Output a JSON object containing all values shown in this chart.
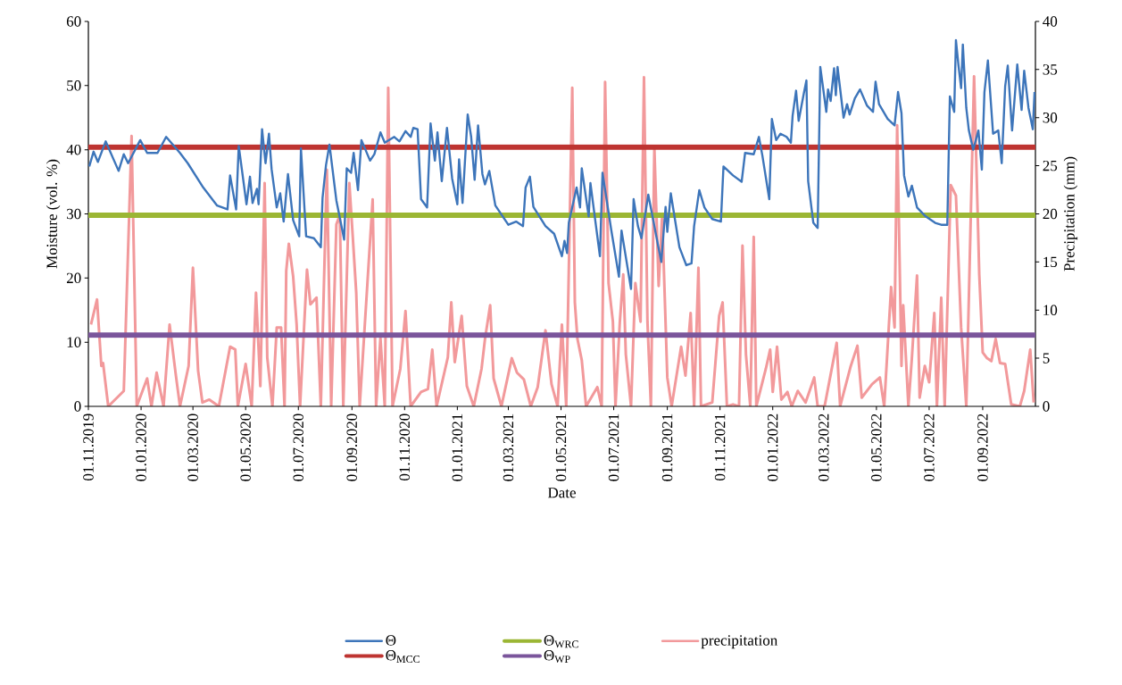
{
  "chart_data": {
    "type": "line",
    "xlabel": "Date",
    "ylabel": "Moisture (vol. %)",
    "y2label": "Precipitation (mm)",
    "xlim": [
      "2019-11-01",
      "2022-11-01"
    ],
    "xticks": [
      {
        "value": "2019-11-01",
        "label": "01.11.2019"
      },
      {
        "value": "2020-01-01",
        "label": "01.01.2020"
      },
      {
        "value": "2020-03-01",
        "label": "01.03.2020"
      },
      {
        "value": "2020-05-01",
        "label": "01.05.2020"
      },
      {
        "value": "2020-07-01",
        "label": "01.07.2020"
      },
      {
        "value": "2020-09-01",
        "label": "01.09.2020"
      },
      {
        "value": "2020-11-01",
        "label": "01.11.2020"
      },
      {
        "value": "2021-01-01",
        "label": "01.01.2021"
      },
      {
        "value": "2021-03-01",
        "label": "01.03.2021"
      },
      {
        "value": "2021-05-01",
        "label": "01.05.2021"
      },
      {
        "value": "2021-07-01",
        "label": "01.07.2021"
      },
      {
        "value": "2021-09-01",
        "label": "01.09.2021"
      },
      {
        "value": "2021-11-01",
        "label": "01.11.2021"
      },
      {
        "value": "2022-01-01",
        "label": "01.01.2022"
      },
      {
        "value": "2022-03-01",
        "label": "01.03.2022"
      },
      {
        "value": "2022-05-01",
        "label": "01.05.2022"
      },
      {
        "value": "2022-07-01",
        "label": "01.07.2022"
      },
      {
        "value": "2022-09-01",
        "label": "01.09.2022"
      }
    ],
    "ylim": [
      0,
      60
    ],
    "yticks": [
      0,
      10,
      20,
      30,
      40,
      50,
      60
    ],
    "y2lim": [
      0,
      40
    ],
    "y2ticks": [
      0,
      5,
      10,
      15,
      20,
      25,
      30,
      35,
      40
    ],
    "legend": "bottom",
    "marker": "none",
    "line_style": "solid",
    "series": [
      {
        "name": "Θ",
        "color": "#3d75ba",
        "x": [
          "2019-11-02",
          "2019-11-07",
          "2019-11-12",
          "2019-11-21",
          "2019-12-06",
          "2019-12-12",
          "2019-12-17",
          "2019-12-31",
          "2020-01-08",
          "2020-01-20",
          "2020-01-30",
          "2020-02-15",
          "2020-02-24",
          "2020-03-13",
          "2020-03-29",
          "2020-04-10",
          "2020-04-13",
          "2020-04-20",
          "2020-04-23",
          "2020-05-02",
          "2020-05-06",
          "2020-05-09",
          "2020-05-14",
          "2020-05-16",
          "2020-05-20",
          "2020-05-24",
          "2020-05-28",
          "2020-05-31",
          "2020-06-06",
          "2020-06-10",
          "2020-06-14",
          "2020-06-19",
          "2020-06-25",
          "2020-07-02",
          "2020-07-04",
          "2020-07-10",
          "2020-07-19",
          "2020-07-27",
          "2020-07-29",
          "2020-08-02",
          "2020-08-06",
          "2020-08-14",
          "2020-08-23",
          "2020-08-26",
          "2020-08-31",
          "2020-09-03",
          "2020-09-08",
          "2020-09-12",
          "2020-09-22",
          "2020-09-27",
          "2020-10-04",
          "2020-10-09",
          "2020-10-20",
          "2020-10-26",
          "2020-11-02",
          "2020-11-08",
          "2020-11-11",
          "2020-11-16",
          "2020-11-20",
          "2020-11-27",
          "2020-12-01",
          "2020-12-06",
          "2020-12-09",
          "2020-12-14",
          "2020-12-20",
          "2020-12-26",
          "2021-01-01",
          "2021-01-03",
          "2021-01-07",
          "2021-01-13",
          "2021-01-17",
          "2021-01-21",
          "2021-01-25",
          "2021-01-30",
          "2021-02-02",
          "2021-02-07",
          "2021-02-14",
          "2021-03-01",
          "2021-03-10",
          "2021-03-18",
          "2021-03-21",
          "2021-03-26",
          "2021-03-30",
          "2021-04-13",
          "2021-04-23",
          "2021-05-02",
          "2021-05-05",
          "2021-05-08",
          "2021-05-10",
          "2021-05-19",
          "2021-05-23",
          "2021-05-25",
          "2021-06-02",
          "2021-06-04",
          "2021-06-15",
          "2021-06-18",
          "2021-06-28",
          "2021-07-07",
          "2021-07-10",
          "2021-07-21",
          "2021-07-24",
          "2021-07-29",
          "2021-08-02",
          "2021-08-10",
          "2021-08-25",
          "2021-08-30",
          "2021-09-01",
          "2021-09-05",
          "2021-09-15",
          "2021-09-23",
          "2021-09-29",
          "2021-10-02",
          "2021-10-08",
          "2021-10-14",
          "2021-10-23",
          "2021-11-02",
          "2021-11-05",
          "2021-11-16",
          "2021-11-26",
          "2021-11-30",
          "2021-12-10",
          "2021-12-16",
          "2021-12-20",
          "2021-12-28",
          "2021-12-31",
          "2022-01-05",
          "2022-01-10",
          "2022-01-17",
          "2022-01-22",
          "2022-01-24",
          "2022-01-28",
          "2022-01-31",
          "2022-02-06",
          "2022-02-09",
          "2022-02-11",
          "2022-02-17",
          "2022-02-22",
          "2022-02-25",
          "2022-03-04",
          "2022-03-06",
          "2022-03-09",
          "2022-03-13",
          "2022-03-15",
          "2022-03-17",
          "2022-03-24",
          "2022-03-28",
          "2022-03-31",
          "2022-04-06",
          "2022-04-12",
          "2022-04-20",
          "2022-04-27",
          "2022-04-30",
          "2022-05-04",
          "2022-05-14",
          "2022-05-22",
          "2022-05-26",
          "2022-05-30",
          "2022-06-02",
          "2022-06-07",
          "2022-06-11",
          "2022-06-17",
          "2022-06-27",
          "2022-07-08",
          "2022-07-15",
          "2022-07-22",
          "2022-07-25",
          "2022-07-30",
          "2022-08-01",
          "2022-08-04",
          "2022-08-07",
          "2022-08-09",
          "2022-08-13",
          "2022-08-16",
          "2022-08-21",
          "2022-08-27",
          "2022-08-31",
          "2022-09-03",
          "2022-09-07",
          "2022-09-13",
          "2022-09-19",
          "2022-09-23",
          "2022-09-27",
          "2022-09-30",
          "2022-10-05",
          "2022-10-11",
          "2022-10-16",
          "2022-10-19",
          "2022-10-24",
          "2022-10-29",
          "2022-10-31"
        ],
        "values": [
          37.4,
          39.7,
          38.1,
          41.3,
          36.7,
          39.3,
          37.9,
          41.5,
          39.5,
          39.5,
          42.0,
          39.5,
          37.9,
          34.1,
          31.3,
          30.7,
          36.0,
          30.7,
          40.6,
          31.5,
          35.8,
          31.7,
          33.9,
          31.5,
          43.2,
          37.9,
          42.5,
          37.0,
          31.0,
          33.2,
          28.8,
          36.2,
          29.0,
          26.5,
          40.2,
          26.5,
          26.2,
          24.8,
          32.5,
          37.6,
          40.8,
          32.1,
          26.0,
          37.1,
          36.4,
          39.5,
          33.7,
          41.5,
          38.3,
          39.3,
          42.7,
          41.1,
          42.0,
          41.3,
          42.9,
          42.0,
          43.4,
          43.2,
          32.3,
          31.0,
          44.1,
          38.3,
          42.7,
          35.1,
          43.4,
          35.5,
          31.5,
          38.5,
          31.7,
          45.5,
          42.0,
          35.3,
          43.8,
          36.2,
          34.6,
          36.7,
          31.3,
          28.3,
          28.8,
          28.1,
          34.1,
          35.8,
          31.1,
          28.1,
          26.9,
          23.4,
          25.8,
          23.9,
          28.6,
          34.1,
          31.0,
          37.1,
          29.6,
          34.8,
          23.4,
          36.4,
          27.6,
          20.2,
          27.4,
          18.3,
          32.3,
          28.1,
          26.2,
          33.0,
          22.5,
          31.1,
          27.2,
          33.2,
          24.8,
          22.0,
          22.3,
          28.1,
          33.7,
          31.0,
          29.2,
          28.8,
          37.4,
          36.0,
          35.0,
          39.5,
          39.3,
          42.0,
          39.1,
          32.3,
          44.8,
          41.5,
          42.5,
          42.0,
          41.1,
          45.3,
          49.2,
          44.5,
          48.8,
          50.8,
          35.1,
          28.6,
          27.8,
          52.9,
          45.9,
          49.4,
          47.6,
          52.7,
          48.5,
          52.9,
          45.0,
          47.1,
          45.5,
          48.0,
          49.4,
          46.9,
          45.9,
          50.6,
          47.1,
          44.8,
          43.8,
          49.0,
          45.7,
          36.0,
          32.7,
          34.4,
          31.0,
          29.6,
          28.6,
          28.3,
          28.3,
          48.3,
          45.9,
          57.1,
          53.1,
          49.6,
          56.4,
          46.5,
          43.0,
          40.0,
          43.0,
          36.9,
          49.0,
          53.9,
          42.5,
          43.0,
          37.9,
          49.9,
          53.1,
          43.0,
          53.3,
          46.2,
          52.3,
          46.5,
          43.2,
          49.0
        ]
      },
      {
        "name": "Θ$_{WRC}$",
        "color": "#9bb634",
        "x": [
          "2019-11-01",
          "2022-11-01"
        ],
        "values": [
          29.8,
          29.8
        ]
      },
      {
        "name": "precipitation",
        "color": "#f2999b",
        "axis": "y2",
        "x": [
          "2019-11-04",
          "2019-11-11",
          "2019-11-16",
          "2019-11-18",
          "2019-11-24",
          "2019-12-12",
          "2019-12-21",
          "2019-12-27",
          "2020-01-08",
          "2020-01-13",
          "2020-01-19",
          "2020-01-27",
          "2020-02-03",
          "2020-02-10",
          "2020-02-15",
          "2020-02-25",
          "2020-03-01",
          "2020-03-07",
          "2020-03-12",
          "2020-03-20",
          "2020-03-31",
          "2020-04-13",
          "2020-04-19",
          "2020-04-22",
          "2020-05-01",
          "2020-05-08",
          "2020-05-13",
          "2020-05-18",
          "2020-05-23",
          "2020-05-26",
          "2020-06-01",
          "2020-06-06",
          "2020-06-11",
          "2020-06-15",
          "2020-06-17",
          "2020-06-20",
          "2020-06-25",
          "2020-06-29",
          "2020-07-03",
          "2020-07-11",
          "2020-07-15",
          "2020-07-22",
          "2020-07-27",
          "2020-08-03",
          "2020-08-08",
          "2020-08-14",
          "2020-08-18",
          "2020-08-22",
          "2020-08-29",
          "2020-09-02",
          "2020-09-06",
          "2020-09-10",
          "2020-09-25",
          "2020-09-29",
          "2020-10-04",
          "2020-10-09",
          "2020-10-13",
          "2020-10-18",
          "2020-10-27",
          "2020-11-02",
          "2020-11-08",
          "2020-11-20",
          "2020-11-28",
          "2020-12-03",
          "2020-12-08",
          "2020-12-21",
          "2020-12-25",
          "2020-12-29",
          "2021-01-06",
          "2021-01-12",
          "2021-01-20",
          "2021-01-29",
          "2021-02-02",
          "2021-02-08",
          "2021-02-12",
          "2021-02-21",
          "2021-03-05",
          "2021-03-11",
          "2021-03-19",
          "2021-03-27",
          "2021-04-04",
          "2021-04-13",
          "2021-04-20",
          "2021-04-27",
          "2021-05-02",
          "2021-05-07",
          "2021-05-14",
          "2021-05-17",
          "2021-05-20",
          "2021-05-25",
          "2021-05-30",
          "2021-06-12",
          "2021-06-17",
          "2021-06-21",
          "2021-06-25",
          "2021-06-30",
          "2021-07-03",
          "2021-07-08",
          "2021-07-12",
          "2021-07-15",
          "2021-07-21",
          "2021-07-26",
          "2021-08-01",
          "2021-08-05",
          "2021-08-09",
          "2021-08-13",
          "2021-08-17",
          "2021-08-22",
          "2021-08-26",
          "2021-09-01",
          "2021-09-06",
          "2021-09-17",
          "2021-09-22",
          "2021-09-28",
          "2021-10-02",
          "2021-10-07",
          "2021-10-10",
          "2021-10-23",
          "2021-10-31",
          "2021-11-04",
          "2021-11-09",
          "2021-11-16",
          "2021-11-23",
          "2021-11-27",
          "2021-12-01",
          "2021-12-06",
          "2021-12-10",
          "2021-12-13",
          "2021-12-24",
          "2021-12-29",
          "2022-01-01",
          "2022-01-06",
          "2022-01-11",
          "2022-01-18",
          "2022-01-23",
          "2022-01-30",
          "2022-02-08",
          "2022-02-18",
          "2022-02-22",
          "2022-03-02",
          "2022-03-16",
          "2022-03-20",
          "2022-04-01",
          "2022-04-09",
          "2022-04-14",
          "2022-04-26",
          "2022-05-05",
          "2022-05-10",
          "2022-05-18",
          "2022-05-22",
          "2022-05-25",
          "2022-05-30",
          "2022-06-01",
          "2022-06-07",
          "2022-06-11",
          "2022-06-17",
          "2022-06-20",
          "2022-06-26",
          "2022-07-01",
          "2022-07-07",
          "2022-07-10",
          "2022-07-15",
          "2022-07-19",
          "2022-07-26",
          "2022-08-01",
          "2022-08-07",
          "2022-08-13",
          "2022-08-22",
          "2022-08-28",
          "2022-09-01",
          "2022-09-06",
          "2022-09-11",
          "2022-09-16",
          "2022-09-21",
          "2022-09-27",
          "2022-10-04",
          "2022-10-14",
          "2022-10-19",
          "2022-10-26",
          "2022-10-30"
        ],
        "values": [
          8.5,
          11.1,
          4.2,
          4.5,
          0,
          1.6,
          28.1,
          0,
          2.9,
          0,
          3.5,
          0,
          8.5,
          3.4,
          0,
          4.2,
          14.4,
          3.7,
          0.4,
          0.7,
          0,
          6.2,
          5.9,
          0,
          4.4,
          0,
          11.8,
          2.1,
          23.2,
          5.1,
          0,
          8.2,
          8.2,
          0,
          14.1,
          16.9,
          13.5,
          8.5,
          0,
          14.2,
          10.6,
          11.3,
          0,
          24.6,
          0,
          18.9,
          19.9,
          0,
          23.2,
          17.6,
          11.8,
          0,
          21.5,
          0,
          7.1,
          0,
          33.1,
          0,
          3.9,
          9.9,
          0,
          1.5,
          1.8,
          5.9,
          0,
          5.1,
          10.8,
          4.6,
          9.4,
          2.1,
          0,
          3.9,
          7.0,
          10.5,
          2.9,
          0,
          5.0,
          3.5,
          2.8,
          0,
          2.0,
          7.9,
          2.3,
          0,
          8.5,
          0,
          33.1,
          10.8,
          7.0,
          4.8,
          0,
          2.0,
          0,
          33.7,
          12.8,
          8.8,
          0,
          8.7,
          13.7,
          5.4,
          0,
          12.8,
          8.8,
          34.2,
          8.8,
          0,
          26.9,
          12.5,
          19.9,
          3.0,
          0,
          6.2,
          3.2,
          9.7,
          0,
          14.4,
          0,
          0.4,
          9.4,
          10.8,
          0,
          0.2,
          0,
          16.7,
          5.4,
          0,
          17.6,
          0,
          3.9,
          5.9,
          1.5,
          6.2,
          0.7,
          1.5,
          0,
          1.6,
          0.4,
          3.0,
          0,
          0,
          6.6,
          0,
          4.1,
          6.3,
          0.9,
          2.3,
          3.0,
          0,
          12.4,
          8.2,
          29.2,
          4.2,
          10.5,
          0,
          5.0,
          13.6,
          0.9,
          4.2,
          2.5,
          9.7,
          0,
          11.3,
          0,
          23.0,
          21.9,
          8.2,
          0,
          34.3,
          13.7,
          5.6,
          5.0,
          4.7,
          7.0,
          4.5,
          4.4,
          0.2,
          0,
          1.6,
          5.9,
          0.4
        ]
      },
      {
        "name": "Θ$_{MCC}$",
        "color": "#be3431",
        "x": [
          "2019-11-01",
          "2022-11-01"
        ],
        "values": [
          40.4,
          40.4
        ]
      },
      {
        "name": "Θ$_{WP}$",
        "color": "#7a559b",
        "x": [
          "2019-11-01",
          "2022-11-01"
        ],
        "values": [
          11.1,
          11.1
        ]
      }
    ]
  }
}
